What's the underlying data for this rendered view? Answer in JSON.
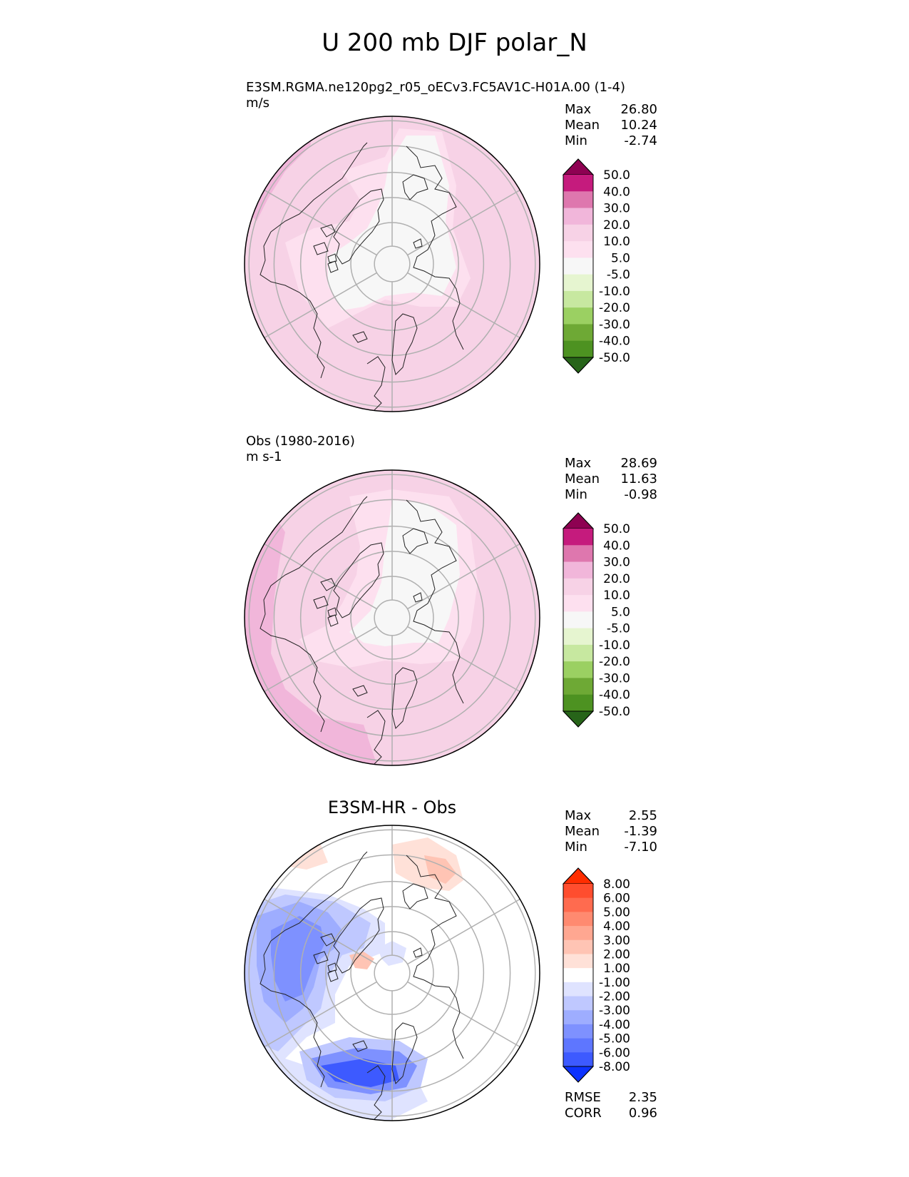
{
  "figure": {
    "title": "U 200 mb DJF polar_N"
  },
  "chart_data": [
    {
      "type": "contour",
      "name": "test",
      "title_line1": "E3SM.RGMA.ne120pg2_r05_oECv3.FC5AV1C-H01A.00 (1-4)",
      "title_line2": "m/s",
      "stats": [
        {
          "label": "Max",
          "value": "26.80"
        },
        {
          "label": "Mean",
          "value": "10.24"
        },
        {
          "label": "Min",
          "value": "-2.74"
        }
      ],
      "colorbar": {
        "levels": [
          "50.0",
          "40.0",
          "30.0",
          "20.0",
          "10.0",
          "5.0",
          "-5.0",
          "-10.0",
          "-20.0",
          "-30.0",
          "-40.0",
          "-50.0"
        ],
        "colors": [
          "#8e0152",
          "#c51b7d",
          "#de77ae",
          "#f1b6da",
          "#f7d2e6",
          "#fde0ef",
          "#f7f7f7",
          "#e6f5d0",
          "#c7e8a0",
          "#9bd062",
          "#6ea935",
          "#4d9221",
          "#276419"
        ]
      }
    },
    {
      "type": "contour",
      "name": "reference",
      "title_line1": "Obs (1980-2016)",
      "title_line2": "m s-1",
      "stats": [
        {
          "label": "Max",
          "value": "28.69"
        },
        {
          "label": "Mean",
          "value": "11.63"
        },
        {
          "label": "Min",
          "value": "-0.98"
        }
      ],
      "colorbar": {
        "levels": [
          "50.0",
          "40.0",
          "30.0",
          "20.0",
          "10.0",
          "5.0",
          "-5.0",
          "-10.0",
          "-20.0",
          "-30.0",
          "-40.0",
          "-50.0"
        ],
        "colors": [
          "#8e0152",
          "#c51b7d",
          "#de77ae",
          "#f1b6da",
          "#f7d2e6",
          "#fde0ef",
          "#f7f7f7",
          "#e6f5d0",
          "#c7e8a0",
          "#9bd062",
          "#6ea935",
          "#4d9221",
          "#276419"
        ]
      }
    },
    {
      "type": "contour",
      "name": "difference",
      "title": "E3SM-HR - Obs",
      "stats": [
        {
          "label": "Max",
          "value": "2.55"
        },
        {
          "label": "Mean",
          "value": "-1.39"
        },
        {
          "label": "Min",
          "value": "-7.10"
        }
      ],
      "metrics": [
        {
          "label": "RMSE",
          "value": "2.35"
        },
        {
          "label": "CORR",
          "value": "0.96"
        }
      ],
      "colorbar": {
        "levels": [
          "8.00",
          "6.00",
          "5.00",
          "4.00",
          "3.00",
          "2.00",
          "1.00",
          "-1.00",
          "-2.00",
          "-3.00",
          "-4.00",
          "-5.00",
          "-6.00",
          "-8.00"
        ],
        "colors": [
          "#ff2d00",
          "#ff4d2e",
          "#ff6b4f",
          "#ff8a70",
          "#ffa791",
          "#ffc4b4",
          "#ffe1d8",
          "#ffffff",
          "#dfe3ff",
          "#bfc8ff",
          "#9eadff",
          "#7e91ff",
          "#5e76ff",
          "#3d5aff",
          "#0d33ff"
        ]
      }
    }
  ]
}
